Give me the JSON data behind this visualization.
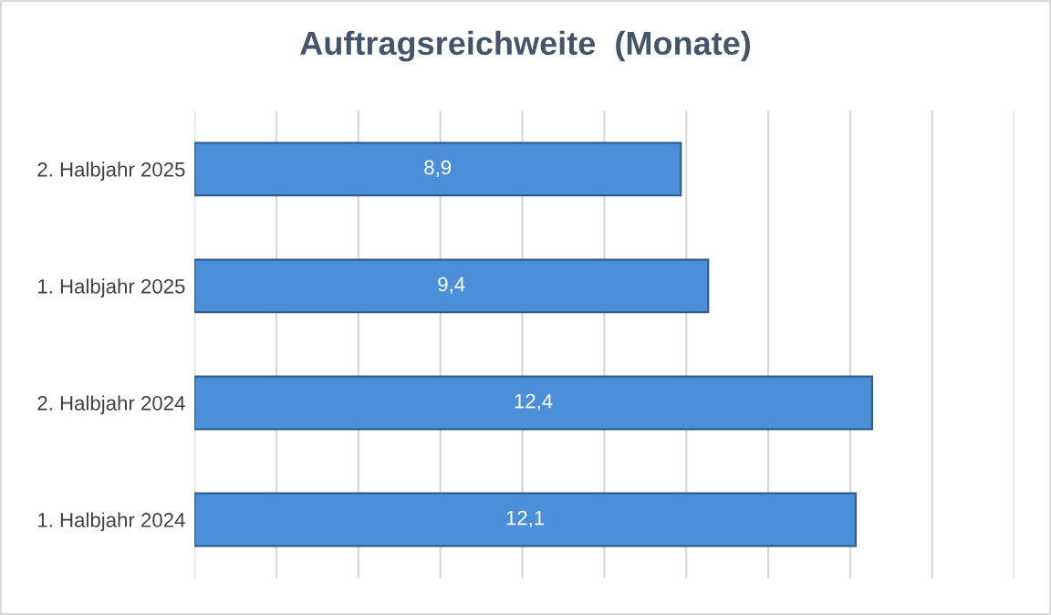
{
  "chart_data": {
    "type": "bar",
    "orientation": "horizontal",
    "title": "Auftragsreichweite  (Monate)",
    "categories": [
      "2. Halbjahr 2025",
      "1. Halbjahr 2025",
      "2. Halbjahr 2024",
      "1. Halbjahr 2024"
    ],
    "values": [
      8.9,
      9.4,
      12.4,
      12.1
    ],
    "value_labels": [
      "8,9",
      "9,4",
      "12,4",
      "12,1"
    ],
    "color": "#4a8fd8",
    "xlim": [
      0,
      15
    ],
    "xticks": [
      {
        "value": 0,
        "label": null
      },
      {
        "value": 1.5,
        "label": null
      },
      {
        "value": 3,
        "label": null
      },
      {
        "value": 4.5,
        "label": null
      },
      {
        "value": 6,
        "label": null
      },
      {
        "value": 7.5,
        "label": null
      },
      {
        "value": 9,
        "label": null
      },
      {
        "value": 10.5,
        "label": null
      },
      {
        "value": 12,
        "label": null
      },
      {
        "value": 13.5,
        "label": null
      },
      {
        "value": 15,
        "label": null
      }
    ],
    "grid": "x",
    "legend": false,
    "tick_labels": "y"
  }
}
